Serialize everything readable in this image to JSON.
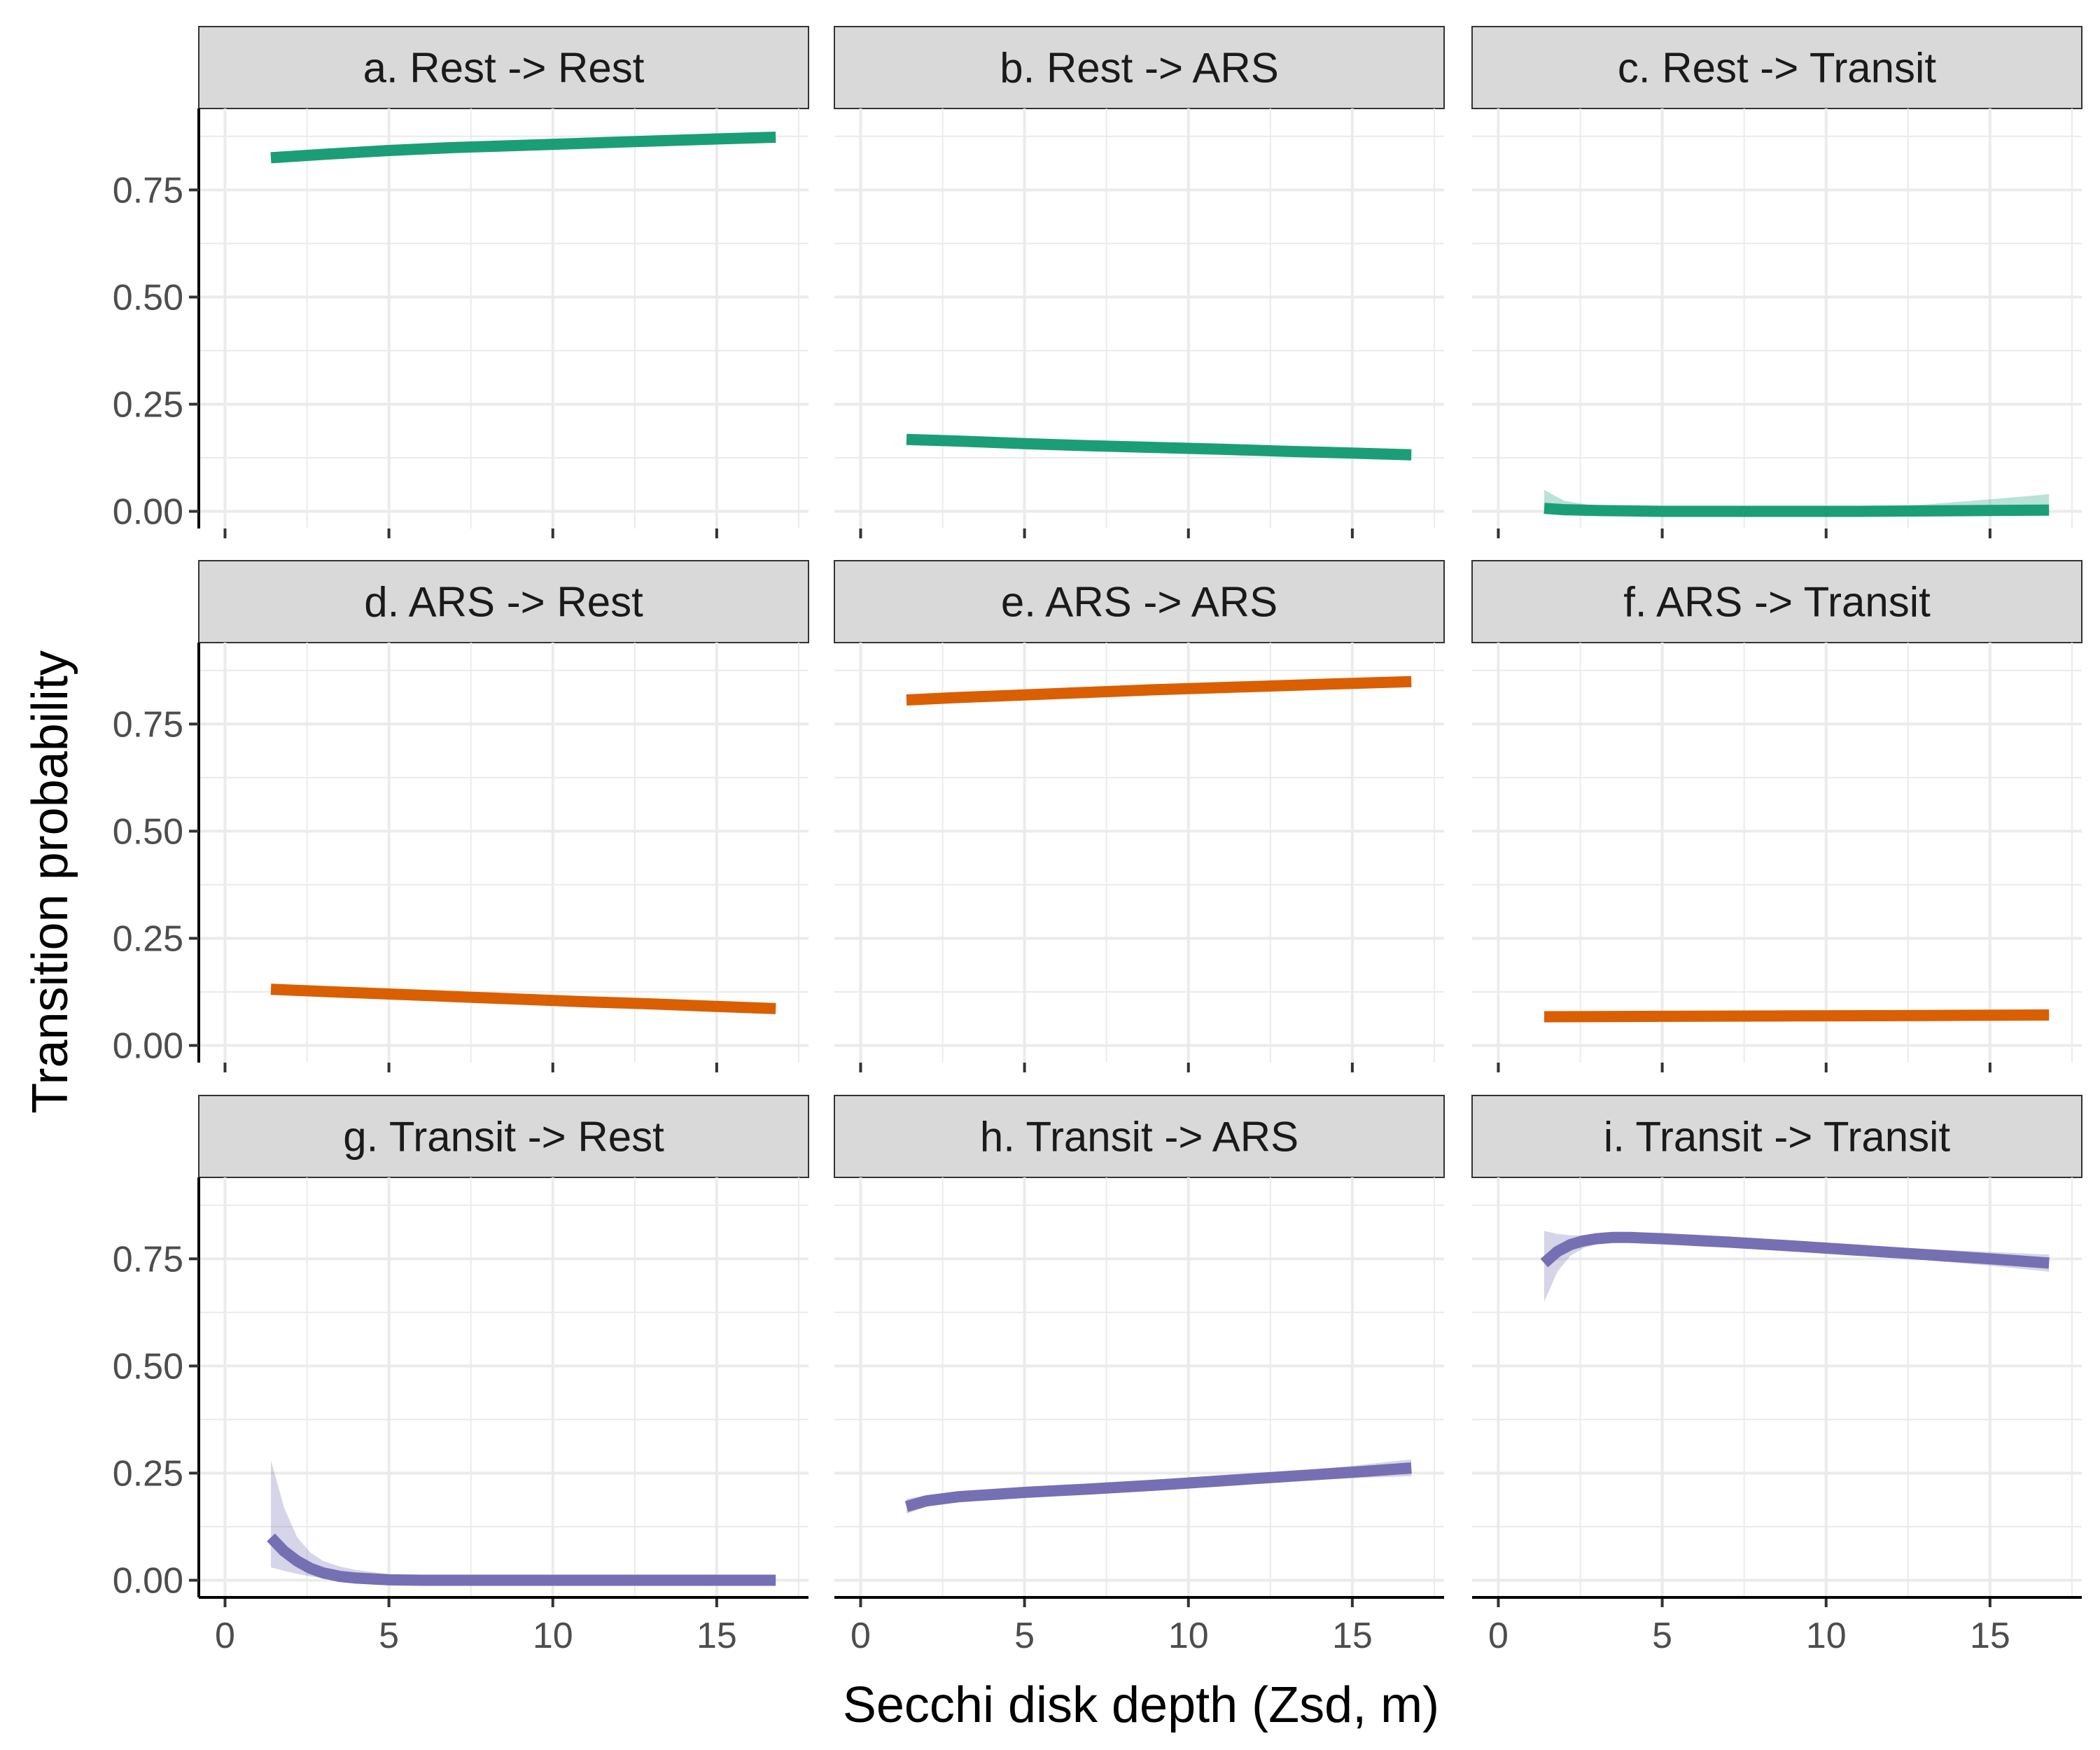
{
  "chart_data": {
    "type": "line",
    "layout": "facet-grid-3x3",
    "xlabel": "Secchi disk depth (Zsd, m)",
    "ylabel": "Transition probability",
    "xlim": [
      -0.8,
      17.8
    ],
    "ylim": [
      -0.04,
      0.94
    ],
    "x_ticks": [
      0,
      5,
      10,
      15
    ],
    "x_tick_labels": [
      "0",
      "5",
      "10",
      "15"
    ],
    "y_ticks": [
      0,
      0.25,
      0.5,
      0.75
    ],
    "y_tick_labels": [
      "0.00",
      "0.25",
      "0.50",
      "0.75"
    ],
    "grid": true,
    "colors": {
      "Rest": "#1b9e77",
      "ARS": "#d95f02",
      "Transit": "#7570b3",
      "strip_fill": "#d9d9d9",
      "grid": "#ebebeb"
    },
    "panels": [
      {
        "title": "a. Rest -> Rest",
        "state": "Rest",
        "x": [
          1.4,
          3,
          5,
          7,
          9,
          11,
          13,
          15,
          16.8
        ],
        "y": [
          0.825,
          0.833,
          0.842,
          0.849,
          0.854,
          0.859,
          0.864,
          0.869,
          0.873
        ],
        "lower": [
          0.815,
          0.826,
          0.837,
          0.845,
          0.851,
          0.856,
          0.86,
          0.863,
          0.864
        ],
        "upper": [
          0.838,
          0.84,
          0.847,
          0.853,
          0.857,
          0.862,
          0.868,
          0.875,
          0.881
        ]
      },
      {
        "title": "b. Rest -> ARS",
        "state": "Rest",
        "x": [
          1.4,
          3,
          5,
          7,
          9,
          11,
          13,
          15,
          16.8
        ],
        "y": [
          0.168,
          0.164,
          0.158,
          0.153,
          0.149,
          0.145,
          0.14,
          0.136,
          0.132
        ],
        "lower": [
          0.158,
          0.157,
          0.153,
          0.149,
          0.145,
          0.141,
          0.135,
          0.129,
          0.122
        ],
        "upper": [
          0.178,
          0.171,
          0.163,
          0.157,
          0.153,
          0.149,
          0.145,
          0.143,
          0.142
        ]
      },
      {
        "title": "c. Rest -> Transit",
        "state": "Rest",
        "x": [
          1.4,
          2,
          3,
          4,
          5,
          7,
          9,
          11,
          13,
          15,
          16.8
        ],
        "y": [
          0.007,
          0.004,
          0.002,
          0.001,
          0.0,
          0.0,
          0.0,
          0.0,
          0.001,
          0.002,
          0.003
        ],
        "lower": [
          0.0,
          0.0,
          0.0,
          0.0,
          0.0,
          0.0,
          0.0,
          0.0,
          0.0,
          0.0,
          0.0
        ],
        "upper": [
          0.05,
          0.025,
          0.012,
          0.006,
          0.003,
          0.003,
          0.004,
          0.008,
          0.016,
          0.028,
          0.04
        ]
      },
      {
        "title": "d. ARS -> Rest",
        "state": "ARS",
        "x": [
          1.4,
          3,
          5,
          7,
          9,
          11,
          13,
          15,
          16.8
        ],
        "y": [
          0.131,
          0.126,
          0.12,
          0.114,
          0.108,
          0.102,
          0.097,
          0.091,
          0.086
        ],
        "lower": [
          0.124,
          0.121,
          0.116,
          0.11,
          0.105,
          0.099,
          0.093,
          0.086,
          0.079
        ],
        "upper": [
          0.139,
          0.132,
          0.124,
          0.118,
          0.112,
          0.106,
          0.101,
          0.097,
          0.094
        ]
      },
      {
        "title": "e. ARS -> ARS",
        "state": "ARS",
        "x": [
          1.4,
          3,
          5,
          7,
          9,
          11,
          13,
          15,
          16.8
        ],
        "y": [
          0.806,
          0.812,
          0.818,
          0.824,
          0.83,
          0.835,
          0.84,
          0.845,
          0.849
        ],
        "lower": [
          0.797,
          0.805,
          0.813,
          0.82,
          0.826,
          0.831,
          0.835,
          0.838,
          0.84
        ],
        "upper": [
          0.815,
          0.819,
          0.823,
          0.828,
          0.834,
          0.839,
          0.845,
          0.852,
          0.858
        ]
      },
      {
        "title": "f. ARS -> Transit",
        "state": "ARS",
        "x": [
          1.4,
          5,
          9,
          13,
          16.8
        ],
        "y": [
          0.067,
          0.068,
          0.069,
          0.07,
          0.071
        ],
        "lower": [
          0.063,
          0.065,
          0.066,
          0.066,
          0.066
        ],
        "upper": [
          0.071,
          0.071,
          0.072,
          0.074,
          0.076
        ]
      },
      {
        "title": "g. Transit -> Rest",
        "state": "Transit",
        "x": [
          1.4,
          1.8,
          2.2,
          2.6,
          3,
          3.5,
          4,
          5,
          6,
          8,
          10,
          12,
          14,
          16.8
        ],
        "y": [
          0.1,
          0.068,
          0.045,
          0.028,
          0.017,
          0.009,
          0.005,
          0.001,
          0.0,
          0.0,
          0.0,
          0.0,
          0.0,
          0.0
        ],
        "lower": [
          0.03,
          0.022,
          0.015,
          0.009,
          0.005,
          0.002,
          0.001,
          0.0,
          0.0,
          0.0,
          0.0,
          0.0,
          0.0,
          0.0
        ],
        "upper": [
          0.28,
          0.17,
          0.1,
          0.065,
          0.045,
          0.032,
          0.024,
          0.014,
          0.008,
          0.004,
          0.002,
          0.002,
          0.002,
          0.002
        ]
      },
      {
        "title": "h. Transit -> ARS",
        "state": "Transit",
        "x": [
          1.4,
          2,
          3,
          5,
          7,
          9,
          11,
          13,
          15,
          16.8
        ],
        "y": [
          0.172,
          0.185,
          0.195,
          0.205,
          0.213,
          0.222,
          0.232,
          0.242,
          0.252,
          0.262
        ],
        "lower": [
          0.155,
          0.172,
          0.186,
          0.199,
          0.208,
          0.217,
          0.225,
          0.232,
          0.238,
          0.243
        ],
        "upper": [
          0.19,
          0.198,
          0.205,
          0.212,
          0.219,
          0.228,
          0.24,
          0.253,
          0.267,
          0.282
        ]
      },
      {
        "title": "i. Transit -> Transit",
        "state": "Transit",
        "x": [
          1.4,
          1.8,
          2.2,
          2.6,
          3,
          3.5,
          4,
          5,
          7,
          9,
          11,
          13,
          15,
          16.8
        ],
        "y": [
          0.74,
          0.767,
          0.783,
          0.792,
          0.797,
          0.8,
          0.8,
          0.797,
          0.789,
          0.78,
          0.77,
          0.76,
          0.75,
          0.74
        ],
        "lower": [
          0.65,
          0.72,
          0.757,
          0.775,
          0.785,
          0.79,
          0.792,
          0.79,
          0.782,
          0.772,
          0.76,
          0.747,
          0.734,
          0.72
        ],
        "upper": [
          0.815,
          0.808,
          0.805,
          0.805,
          0.806,
          0.807,
          0.807,
          0.804,
          0.796,
          0.788,
          0.78,
          0.773,
          0.766,
          0.76
        ]
      }
    ]
  }
}
